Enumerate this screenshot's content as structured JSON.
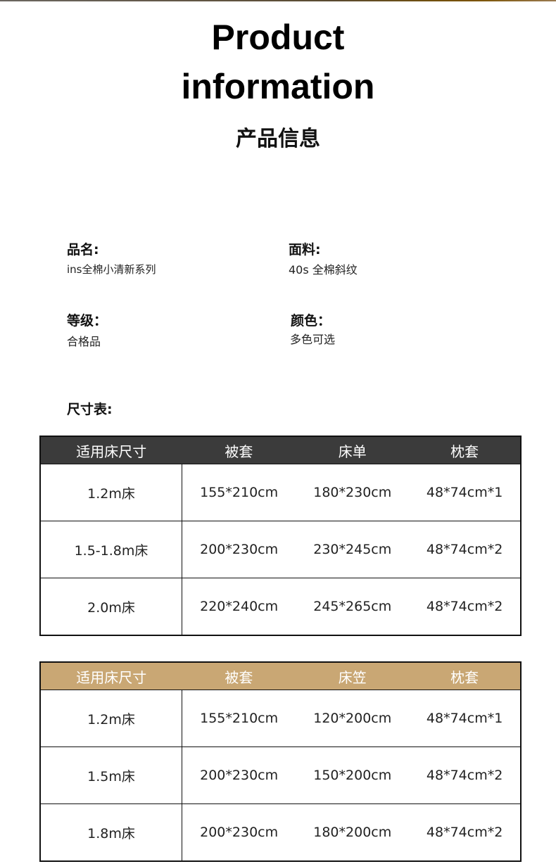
{
  "title_line1": "Product",
  "title_line2": "information",
  "title_cn": "产品信息",
  "info": [
    {
      "label": "品名:",
      "value": "ins全棉小清新系列"
    },
    {
      "label": "面料:",
      "value": "40s 全棉斜纹"
    },
    {
      "label": "等级：",
      "value": "合格品"
    },
    {
      "label": "颜色：",
      "value": "多色可选"
    }
  ],
  "size_chart_label": "尺寸表:",
  "table1": {
    "headers": [
      "适用床尺寸",
      "被套",
      "床单",
      "枕套"
    ],
    "rows": [
      [
        "1.2m床",
        "155*210cm",
        "180*230cm",
        "48*74cm*1"
      ],
      [
        "1.5-1.8m床",
        "200*230cm",
        "230*245cm",
        "48*74cm*2"
      ],
      [
        "2.0m床",
        "220*240cm",
        "245*265cm",
        "48*74cm*2"
      ]
    ]
  },
  "table2": {
    "headers": [
      "适用床尺寸",
      "被套",
      "床笠",
      "枕套"
    ],
    "rows": [
      [
        "1.2m床",
        "155*210cm",
        "120*200cm",
        "48*74cm*1"
      ],
      [
        "1.5m床",
        "200*230cm",
        "150*200cm",
        "48*74cm*2"
      ],
      [
        "1.8m床",
        "200*230cm",
        "180*200cm",
        "48*74cm*2"
      ]
    ]
  },
  "colors": {
    "header_dark": "#3b3b3b",
    "header_gold": "#c9a774"
  }
}
